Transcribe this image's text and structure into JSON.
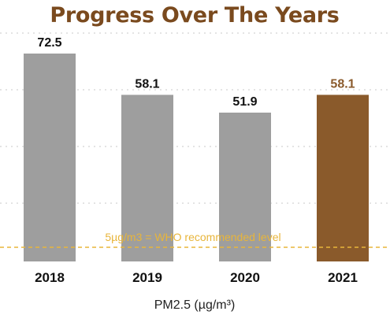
{
  "chart_data": {
    "type": "bar",
    "title": "Progress Over The Years",
    "xlabel": "PM2.5 (µg/m³)",
    "ylabel": "",
    "categories": [
      "2018",
      "2019",
      "2020",
      "2021"
    ],
    "values": [
      72.5,
      58.1,
      51.9,
      58.1
    ],
    "value_labels": [
      "72.5",
      "58.1",
      "51.9",
      "58.1"
    ],
    "highlight_index": 3,
    "ylim": [
      0,
      80
    ],
    "grid": true,
    "reference_line": {
      "value": 5,
      "label": "5µg/m3 = WHO recommended level"
    }
  },
  "colors": {
    "title": "#7a4a1e",
    "bar_default": "#9e9e9e",
    "bar_highlight": "#8a5a2b",
    "label_default": "#111111",
    "label_highlight": "#8a5a2b",
    "reference_line": "#e8b53a",
    "reference_label": "#e8b53a",
    "grid": "#c9c9c9"
  }
}
